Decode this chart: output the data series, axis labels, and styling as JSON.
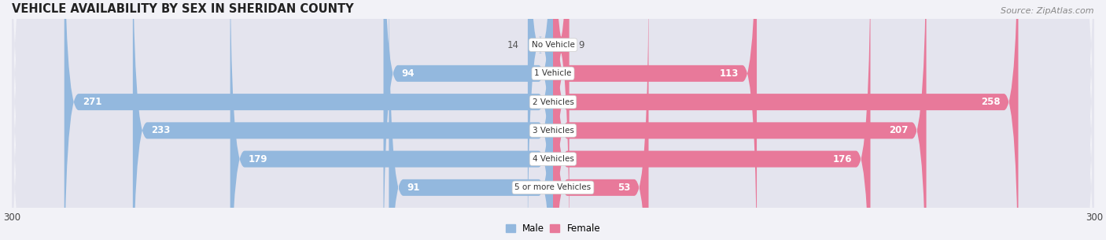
{
  "title": "VEHICLE AVAILABILITY BY SEX IN SHERIDAN COUNTY",
  "source": "Source: ZipAtlas.com",
  "categories": [
    "No Vehicle",
    "1 Vehicle",
    "2 Vehicles",
    "3 Vehicles",
    "4 Vehicles",
    "5 or more Vehicles"
  ],
  "male_values": [
    14,
    94,
    271,
    233,
    179,
    91
  ],
  "female_values": [
    9,
    113,
    258,
    207,
    176,
    53
  ],
  "male_color": "#93b8de",
  "female_color": "#e8799a",
  "label_color_inside": "#ffffff",
  "label_color_outside": "#555555",
  "inside_threshold": 50,
  "xlim": 300,
  "background_color": "#f2f2f7",
  "row_bg_color": "#e4e4ee",
  "legend_male": "Male",
  "legend_female": "Female"
}
